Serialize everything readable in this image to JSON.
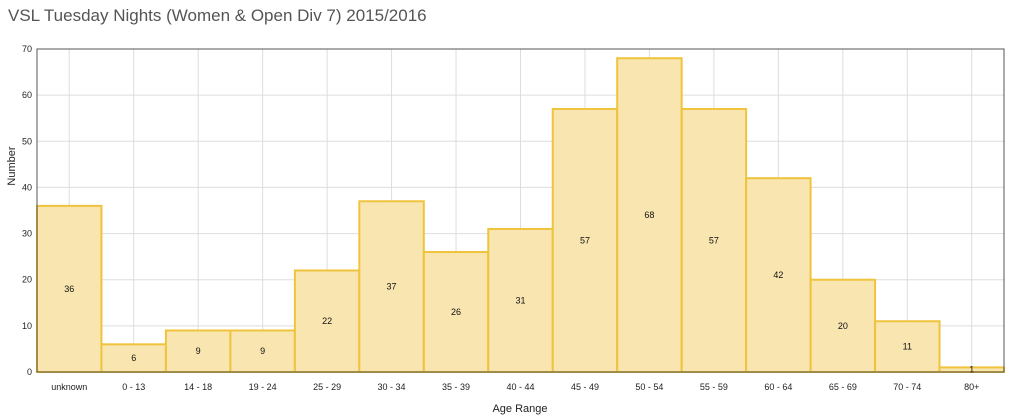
{
  "chart_data": {
    "type": "bar",
    "title": "VSL Tuesday Nights (Women & Open Div 7) 2015/2016",
    "xlabel": "Age Range",
    "ylabel": "Number",
    "categories": [
      "unknown",
      "0 - 13",
      "14 - 18",
      "19 - 24",
      "25 - 29",
      "30 - 34",
      "35 - 39",
      "40 - 44",
      "45 - 49",
      "50 - 54",
      "55 - 59",
      "60 - 64",
      "65 - 69",
      "70 - 74",
      "80+"
    ],
    "values": [
      36,
      6,
      9,
      9,
      22,
      37,
      26,
      31,
      57,
      68,
      57,
      42,
      20,
      11,
      1
    ],
    "ylim": [
      0,
      70
    ],
    "yticks": [
      0,
      10,
      20,
      30,
      40,
      50,
      60,
      70
    ],
    "grid": true,
    "bar_fill": "#f8e5b0",
    "bar_stroke": "#f0c33c",
    "grid_color": "#dddddd",
    "frame_color": "#555555"
  }
}
